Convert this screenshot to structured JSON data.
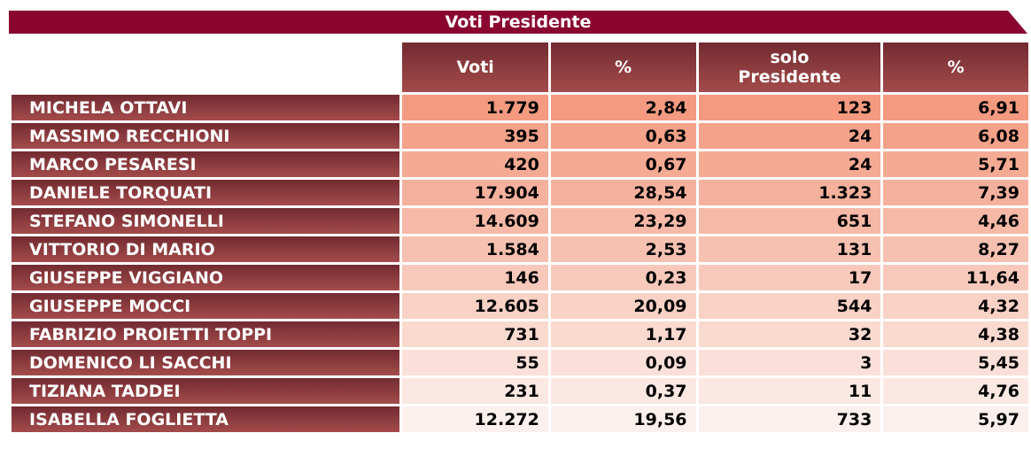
{
  "title": "Voti Presidente",
  "headers": [
    "Voti",
    "%",
    "solo Presidente",
    "%"
  ],
  "colors": {
    "title_bg": "#8a0630",
    "header_bg": "#722b31",
    "row_top": "#f39a80",
    "row_bottom": "#fcf0ec"
  },
  "rows": [
    {
      "name": "MICHELA OTTAVI",
      "voti": "1.779",
      "pct": "2,84",
      "solo": "123",
      "solo_pct": "6,91"
    },
    {
      "name": "MASSIMO RECCHIONI",
      "voti": "395",
      "pct": "0,63",
      "solo": "24",
      "solo_pct": "6,08"
    },
    {
      "name": "MARCO PESARESI",
      "voti": "420",
      "pct": "0,67",
      "solo": "24",
      "solo_pct": "5,71"
    },
    {
      "name": "DANIELE TORQUATI",
      "voti": "17.904",
      "pct": "28,54",
      "solo": "1.323",
      "solo_pct": "7,39"
    },
    {
      "name": "STEFANO SIMONELLI",
      "voti": "14.609",
      "pct": "23,29",
      "solo": "651",
      "solo_pct": "4,46"
    },
    {
      "name": "VITTORIO DI MARIO",
      "voti": "1.584",
      "pct": "2,53",
      "solo": "131",
      "solo_pct": "8,27"
    },
    {
      "name": "GIUSEPPE VIGGIANO",
      "voti": "146",
      "pct": "0,23",
      "solo": "17",
      "solo_pct": "11,64"
    },
    {
      "name": "GIUSEPPE MOCCI",
      "voti": "12.605",
      "pct": "20,09",
      "solo": "544",
      "solo_pct": "4,32"
    },
    {
      "name": "FABRIZIO PROIETTI TOPPI",
      "voti": "731",
      "pct": "1,17",
      "solo": "32",
      "solo_pct": "4,38"
    },
    {
      "name": "DOMENICO LI SACCHI",
      "voti": "55",
      "pct": "0,09",
      "solo": "3",
      "solo_pct": "5,45"
    },
    {
      "name": "TIZIANA TADDEI",
      "voti": "231",
      "pct": "0,37",
      "solo": "11",
      "solo_pct": "4,76"
    },
    {
      "name": "ISABELLA FOGLIETTA",
      "voti": "12.272",
      "pct": "19,56",
      "solo": "733",
      "solo_pct": "5,97"
    }
  ]
}
